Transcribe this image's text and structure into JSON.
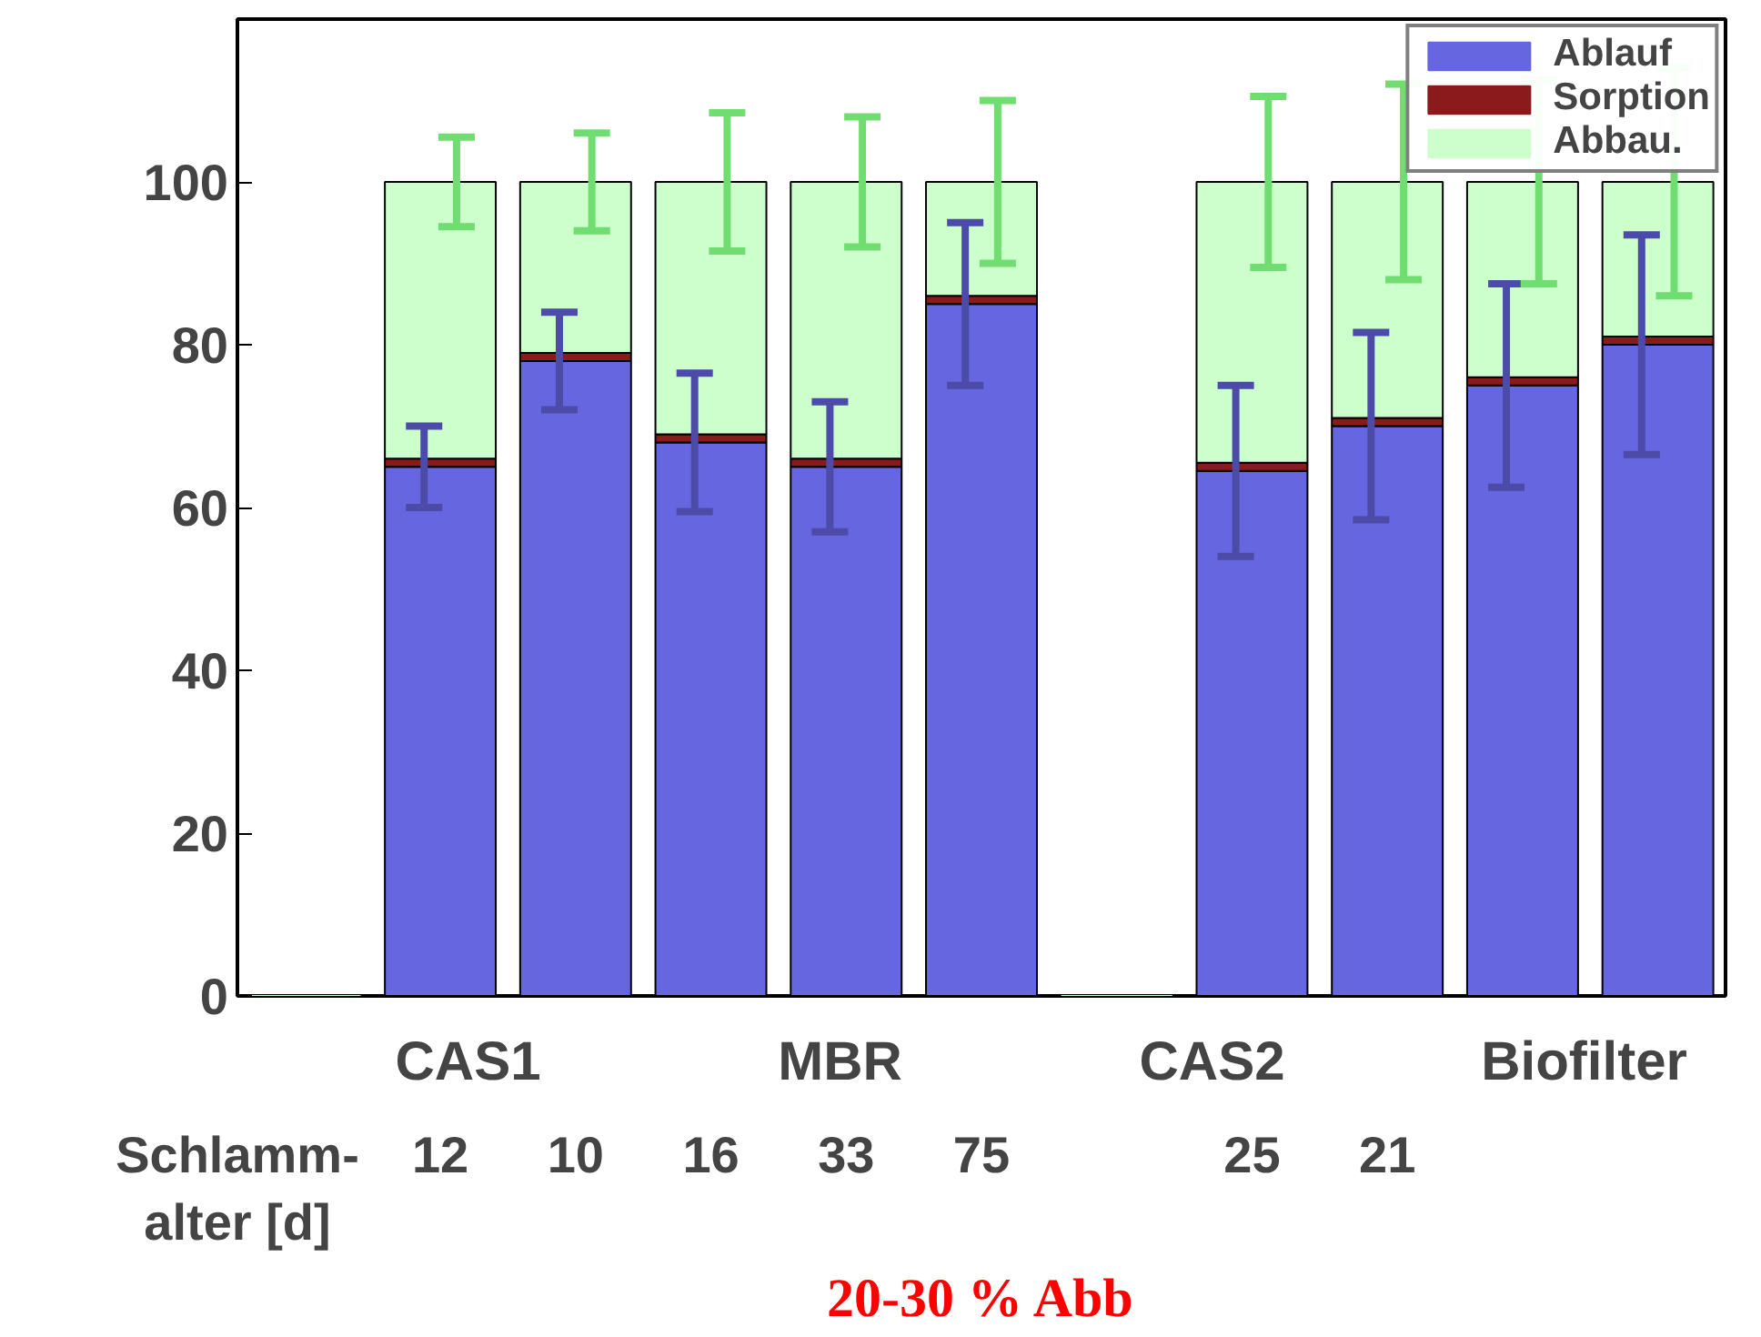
{
  "chart_data": {
    "type": "bar",
    "stacked": true,
    "categories": [
      null,
      "12",
      "10",
      "16",
      "33",
      "75",
      null,
      "25",
      "21",
      null,
      null
    ],
    "series": [
      {
        "name": "Ablauf",
        "color": "#6666e0",
        "values": [
          0,
          65,
          78,
          68,
          65,
          85,
          0,
          64.5,
          70,
          75,
          80
        ],
        "errors": [
          null,
          5,
          6,
          8.5,
          8,
          10,
          null,
          10.5,
          11.5,
          12.5,
          13.5
        ]
      },
      {
        "name": "Sorption",
        "color": "#8b1a1a",
        "values": [
          0,
          1,
          1,
          1,
          1,
          1,
          0,
          1,
          1,
          1,
          1
        ]
      },
      {
        "name": "Abbau.",
        "color": "#ccffcc",
        "values": [
          0,
          34,
          21,
          31,
          34,
          14,
          0,
          34.5,
          29,
          24,
          19
        ],
        "errors": [
          null,
          5.5,
          6,
          8.5,
          8,
          10,
          null,
          10.5,
          12,
          12.5,
          14
        ]
      }
    ],
    "ylim": [
      0,
      120
    ],
    "yticks": [
      0,
      20,
      40,
      60,
      80,
      100
    ],
    "grid": false,
    "legend": "top right",
    "annotations": [
      "CAS1",
      "MBR",
      "CAS2",
      "Biofilter",
      "Schlamm-\nalter [d]",
      "20-30 % Abb"
    ]
  }
}
